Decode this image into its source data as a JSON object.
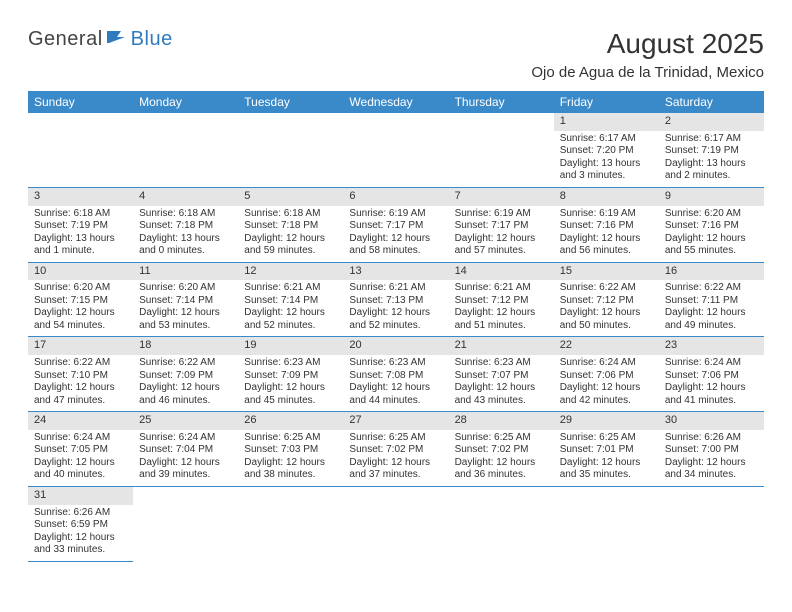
{
  "logo": {
    "general": "General",
    "blue": "Blue"
  },
  "header": {
    "title": "August 2025",
    "subtitle": "Ojo de Agua de la Trinidad, Mexico"
  },
  "colors": {
    "header_bg": "#3a89c9",
    "header_fg": "#ffffff",
    "daynum_bg": "#e5e5e5",
    "rule": "#3a89c9",
    "text": "#333333",
    "logo_blue": "#2f7bbf"
  },
  "daysOfWeek": [
    "Sunday",
    "Monday",
    "Tuesday",
    "Wednesday",
    "Thursday",
    "Friday",
    "Saturday"
  ],
  "weeks": [
    [
      null,
      null,
      null,
      null,
      null,
      {
        "n": "1",
        "sr": "Sunrise: 6:17 AM",
        "ss": "Sunset: 7:20 PM",
        "dl": "Daylight: 13 hours and 3 minutes."
      },
      {
        "n": "2",
        "sr": "Sunrise: 6:17 AM",
        "ss": "Sunset: 7:19 PM",
        "dl": "Daylight: 13 hours and 2 minutes."
      }
    ],
    [
      {
        "n": "3",
        "sr": "Sunrise: 6:18 AM",
        "ss": "Sunset: 7:19 PM",
        "dl": "Daylight: 13 hours and 1 minute."
      },
      {
        "n": "4",
        "sr": "Sunrise: 6:18 AM",
        "ss": "Sunset: 7:18 PM",
        "dl": "Daylight: 13 hours and 0 minutes."
      },
      {
        "n": "5",
        "sr": "Sunrise: 6:18 AM",
        "ss": "Sunset: 7:18 PM",
        "dl": "Daylight: 12 hours and 59 minutes."
      },
      {
        "n": "6",
        "sr": "Sunrise: 6:19 AM",
        "ss": "Sunset: 7:17 PM",
        "dl": "Daylight: 12 hours and 58 minutes."
      },
      {
        "n": "7",
        "sr": "Sunrise: 6:19 AM",
        "ss": "Sunset: 7:17 PM",
        "dl": "Daylight: 12 hours and 57 minutes."
      },
      {
        "n": "8",
        "sr": "Sunrise: 6:19 AM",
        "ss": "Sunset: 7:16 PM",
        "dl": "Daylight: 12 hours and 56 minutes."
      },
      {
        "n": "9",
        "sr": "Sunrise: 6:20 AM",
        "ss": "Sunset: 7:16 PM",
        "dl": "Daylight: 12 hours and 55 minutes."
      }
    ],
    [
      {
        "n": "10",
        "sr": "Sunrise: 6:20 AM",
        "ss": "Sunset: 7:15 PM",
        "dl": "Daylight: 12 hours and 54 minutes."
      },
      {
        "n": "11",
        "sr": "Sunrise: 6:20 AM",
        "ss": "Sunset: 7:14 PM",
        "dl": "Daylight: 12 hours and 53 minutes."
      },
      {
        "n": "12",
        "sr": "Sunrise: 6:21 AM",
        "ss": "Sunset: 7:14 PM",
        "dl": "Daylight: 12 hours and 52 minutes."
      },
      {
        "n": "13",
        "sr": "Sunrise: 6:21 AM",
        "ss": "Sunset: 7:13 PM",
        "dl": "Daylight: 12 hours and 52 minutes."
      },
      {
        "n": "14",
        "sr": "Sunrise: 6:21 AM",
        "ss": "Sunset: 7:12 PM",
        "dl": "Daylight: 12 hours and 51 minutes."
      },
      {
        "n": "15",
        "sr": "Sunrise: 6:22 AM",
        "ss": "Sunset: 7:12 PM",
        "dl": "Daylight: 12 hours and 50 minutes."
      },
      {
        "n": "16",
        "sr": "Sunrise: 6:22 AM",
        "ss": "Sunset: 7:11 PM",
        "dl": "Daylight: 12 hours and 49 minutes."
      }
    ],
    [
      {
        "n": "17",
        "sr": "Sunrise: 6:22 AM",
        "ss": "Sunset: 7:10 PM",
        "dl": "Daylight: 12 hours and 47 minutes."
      },
      {
        "n": "18",
        "sr": "Sunrise: 6:22 AM",
        "ss": "Sunset: 7:09 PM",
        "dl": "Daylight: 12 hours and 46 minutes."
      },
      {
        "n": "19",
        "sr": "Sunrise: 6:23 AM",
        "ss": "Sunset: 7:09 PM",
        "dl": "Daylight: 12 hours and 45 minutes."
      },
      {
        "n": "20",
        "sr": "Sunrise: 6:23 AM",
        "ss": "Sunset: 7:08 PM",
        "dl": "Daylight: 12 hours and 44 minutes."
      },
      {
        "n": "21",
        "sr": "Sunrise: 6:23 AM",
        "ss": "Sunset: 7:07 PM",
        "dl": "Daylight: 12 hours and 43 minutes."
      },
      {
        "n": "22",
        "sr": "Sunrise: 6:24 AM",
        "ss": "Sunset: 7:06 PM",
        "dl": "Daylight: 12 hours and 42 minutes."
      },
      {
        "n": "23",
        "sr": "Sunrise: 6:24 AM",
        "ss": "Sunset: 7:06 PM",
        "dl": "Daylight: 12 hours and 41 minutes."
      }
    ],
    [
      {
        "n": "24",
        "sr": "Sunrise: 6:24 AM",
        "ss": "Sunset: 7:05 PM",
        "dl": "Daylight: 12 hours and 40 minutes."
      },
      {
        "n": "25",
        "sr": "Sunrise: 6:24 AM",
        "ss": "Sunset: 7:04 PM",
        "dl": "Daylight: 12 hours and 39 minutes."
      },
      {
        "n": "26",
        "sr": "Sunrise: 6:25 AM",
        "ss": "Sunset: 7:03 PM",
        "dl": "Daylight: 12 hours and 38 minutes."
      },
      {
        "n": "27",
        "sr": "Sunrise: 6:25 AM",
        "ss": "Sunset: 7:02 PM",
        "dl": "Daylight: 12 hours and 37 minutes."
      },
      {
        "n": "28",
        "sr": "Sunrise: 6:25 AM",
        "ss": "Sunset: 7:02 PM",
        "dl": "Daylight: 12 hours and 36 minutes."
      },
      {
        "n": "29",
        "sr": "Sunrise: 6:25 AM",
        "ss": "Sunset: 7:01 PM",
        "dl": "Daylight: 12 hours and 35 minutes."
      },
      {
        "n": "30",
        "sr": "Sunrise: 6:26 AM",
        "ss": "Sunset: 7:00 PM",
        "dl": "Daylight: 12 hours and 34 minutes."
      }
    ],
    [
      {
        "n": "31",
        "sr": "Sunrise: 6:26 AM",
        "ss": "Sunset: 6:59 PM",
        "dl": "Daylight: 12 hours and 33 minutes."
      },
      null,
      null,
      null,
      null,
      null,
      null
    ]
  ]
}
